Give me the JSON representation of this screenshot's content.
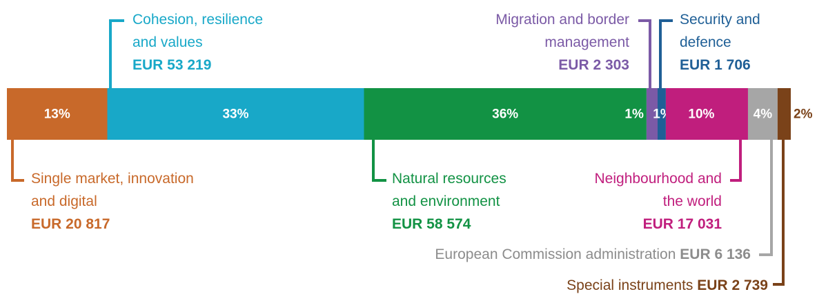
{
  "chart_data": {
    "type": "bar",
    "orientation": "horizontal",
    "stacked": true,
    "segments": [
      {
        "name": "Single market, innovation and digital",
        "value": 20817,
        "value_label": "EUR 20 817",
        "share": 13,
        "share_label": "13%",
        "color": "#c8692a"
      },
      {
        "name": "Cohesion, resilience and values",
        "value": 53219,
        "value_label": "EUR 53 219",
        "share": 33,
        "share_label": "33%",
        "color": "#18a8c8"
      },
      {
        "name": "Natural resources and environment",
        "value": 58574,
        "value_label": "EUR 58 574",
        "share": 36,
        "share_label": "36%",
        "color": "#129244"
      },
      {
        "name": "Migration and border management",
        "value": 2303,
        "value_label": "EUR 2 303",
        "share": 1,
        "share_label": "1%",
        "color": "#7b5aa6"
      },
      {
        "name": "Security and defence",
        "value": 1706,
        "value_label": "EUR 1 706",
        "share": 1,
        "share_label": "1%",
        "color": "#1f5f96"
      },
      {
        "name": "Neighbourhood and the world",
        "value": 17031,
        "value_label": "EUR 17 031",
        "share": 10,
        "share_label": "10%",
        "color": "#c01e7d"
      },
      {
        "name": "European Commission administration",
        "value": 6136,
        "value_label": "EUR 6 136",
        "share": 4,
        "share_label": "4%",
        "color": "#a6a6a6"
      },
      {
        "name": "Special instruments",
        "value": 2739,
        "value_label": "EUR 2 739",
        "share": 2,
        "share_label": "2%",
        "color": "#7a4219"
      }
    ]
  }
}
